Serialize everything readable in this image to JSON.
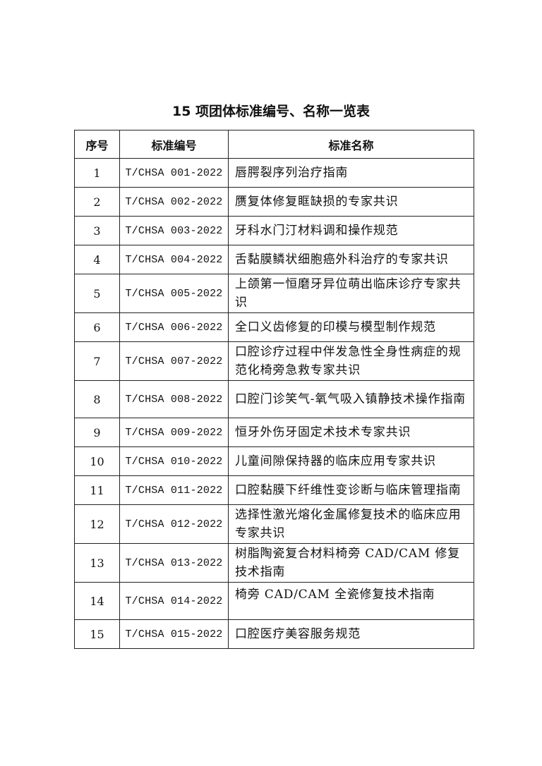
{
  "title": "15 项团体标准编号、名称一览表",
  "table": {
    "headers": [
      "序号",
      "标准编号",
      "标准名称"
    ],
    "rows": [
      {
        "no": "1",
        "code": "T/CHSA 001-2022",
        "name": "唇腭裂序列治疗指南"
      },
      {
        "no": "2",
        "code": "T/CHSA 002-2022",
        "name": "赝复体修复眶缺损的专家共识"
      },
      {
        "no": "3",
        "code": "T/CHSA 003-2022",
        "name": "牙科水门汀材料调和操作规范"
      },
      {
        "no": "4",
        "code": "T/CHSA 004-2022",
        "name": "舌黏膜鳞状细胞癌外科治疗的专家共识"
      },
      {
        "no": "5",
        "code": "T/CHSA 005-2022",
        "name": "上颌第一恒磨牙异位萌出临床诊疗专家共识"
      },
      {
        "no": "6",
        "code": "T/CHSA 006-2022",
        "name": "全口义齿修复的印模与模型制作规范"
      },
      {
        "no": "7",
        "code": "T/CHSA 007-2022",
        "name": "口腔诊疗过程中伴发急性全身性病症的规范化椅旁急救专家共识"
      },
      {
        "no": "8",
        "code": "T/CHSA 008-2022",
        "name": "口腔门诊笑气-氧气吸入镇静技术操作指南"
      },
      {
        "no": "9",
        "code": "T/CHSA 009-2022",
        "name": "恒牙外伤牙固定术技术专家共识"
      },
      {
        "no": "10",
        "code": "T/CHSA 010-2022",
        "name": "儿童间隙保持器的临床应用专家共识"
      },
      {
        "no": "11",
        "code": "T/CHSA 011-2022",
        "name": "口腔黏膜下纤维性变诊断与临床管理指南"
      },
      {
        "no": "12",
        "code": "T/CHSA 012-2022",
        "name": "选择性激光熔化金属修复技术的临床应用专家共识"
      },
      {
        "no": "13",
        "code": "T/CHSA 013-2022",
        "name": "树脂陶瓷复合材料椅旁 CAD/CAM 修复技术指南"
      },
      {
        "no": "14",
        "code": "T/CHSA 014-2022",
        "name": "椅旁 CAD/CAM 全瓷修复技术指南"
      },
      {
        "no": "15",
        "code": "T/CHSA 015-2022",
        "name": "口腔医疗美容服务规范"
      }
    ]
  }
}
